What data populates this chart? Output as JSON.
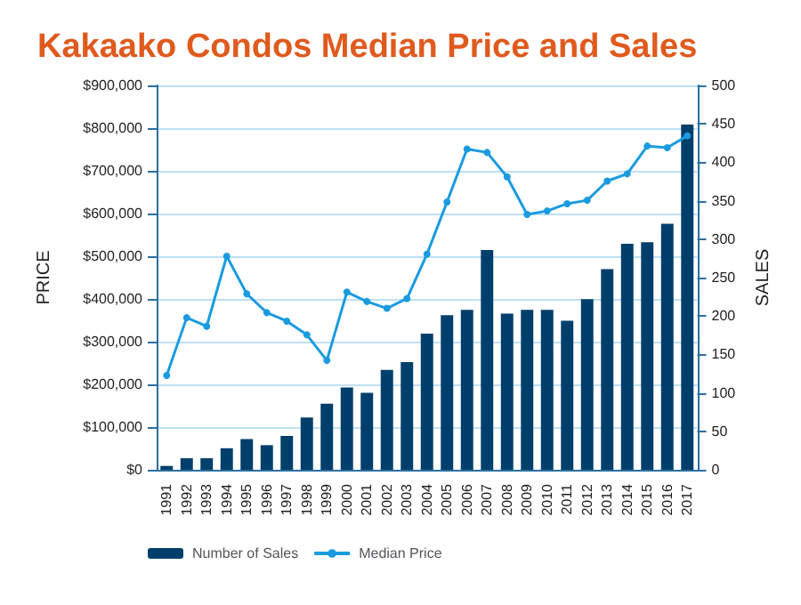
{
  "chart_data": {
    "type": "bar",
    "title": "Kakaako Condos Median Price and Sales",
    "ylabel": "PRICE",
    "y2label": "SALES",
    "categories": [
      "1991",
      "1992",
      "1993",
      "1994",
      "1995",
      "1996",
      "1997",
      "1998",
      "1999",
      "2000",
      "2001",
      "2002",
      "2003",
      "2004",
      "2005",
      "2006",
      "2007",
      "2008",
      "2009",
      "2010",
      "2011",
      "2012",
      "2013",
      "2014",
      "2015",
      "2016",
      "2017"
    ],
    "series": [
      {
        "name": "Number of Sales",
        "axis": "y2",
        "color": "#003f6b",
        "values": [
          5,
          15,
          15,
          28,
          40,
          32,
          44,
          68,
          86,
          107,
          100,
          130,
          140,
          177,
          201,
          208,
          286,
          203,
          208,
          208,
          194,
          222,
          261,
          294,
          296,
          320,
          449
        ]
      },
      {
        "name": "Median Price",
        "type": "line",
        "axis": "y",
        "color": "#1a9be0",
        "marker": "circle",
        "values": [
          221000,
          356000,
          336000,
          500000,
          412000,
          368000,
          348000,
          316000,
          256000,
          416000,
          394000,
          378000,
          401000,
          505000,
          627000,
          751000,
          743000,
          686000,
          598000,
          606000,
          623000,
          631000,
          676000,
          693000,
          758000,
          754000,
          782000
        ]
      }
    ],
    "ylim": [
      0,
      900000
    ],
    "yticks": [
      {
        "value": 0,
        "label": "$0"
      },
      {
        "value": 100000,
        "label": "$100,000"
      },
      {
        "value": 200000,
        "label": "$200,000"
      },
      {
        "value": 300000,
        "label": "$300,000"
      },
      {
        "value": 400000,
        "label": "$400,000"
      },
      {
        "value": 500000,
        "label": "$500,000"
      },
      {
        "value": 600000,
        "label": "$600,000"
      },
      {
        "value": 700000,
        "label": "$700,000"
      },
      {
        "value": 800000,
        "label": "$800,000"
      },
      {
        "value": 900000,
        "label": "$900,000"
      }
    ],
    "y2lim": [
      0,
      500
    ],
    "y2ticks": [
      0,
      50,
      100,
      150,
      200,
      250,
      300,
      350,
      400,
      450,
      500
    ],
    "grid": "y",
    "legend": "bottom left"
  }
}
